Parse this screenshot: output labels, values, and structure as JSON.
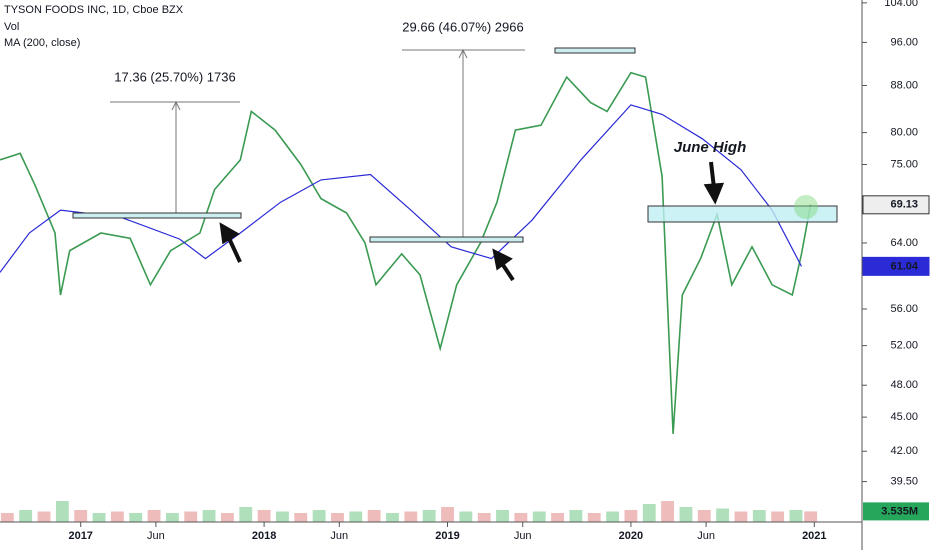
{
  "chart_data": {
    "type": "line",
    "title": "TYSON FOODS INC, 1D, Cboe BZX",
    "volume_label": "Vol",
    "ma_label": "MA (200, close)",
    "log_scale": true,
    "xlim": [
      2016.56,
      2021.26
    ],
    "xticks": [
      {
        "value": 2017,
        "label": "2017"
      },
      {
        "value": 2017.41,
        "label": "Jun"
      },
      {
        "value": 2018,
        "label": "2018"
      },
      {
        "value": 2018.41,
        "label": "Jun"
      },
      {
        "value": 2019,
        "label": "2019"
      },
      {
        "value": 2019.41,
        "label": "Jun"
      },
      {
        "value": 2020,
        "label": "2020"
      },
      {
        "value": 2020.41,
        "label": "Jun"
      },
      {
        "value": 2021,
        "label": "2021"
      }
    ],
    "ylim": [
      36.4,
      104.6
    ],
    "yticks": [
      {
        "value": 104,
        "label": "104.00"
      },
      {
        "value": 96,
        "label": "96.00"
      },
      {
        "value": 88,
        "label": "88.00"
      },
      {
        "value": 80,
        "label": "80.00"
      },
      {
        "value": 75,
        "label": "75.00"
      },
      {
        "value": 64,
        "label": "64.00"
      },
      {
        "value": 56,
        "label": "56.00"
      },
      {
        "value": 52,
        "label": "52.00"
      },
      {
        "value": 48,
        "label": "48.00"
      },
      {
        "value": 45,
        "label": "45.00"
      },
      {
        "value": 42,
        "label": "42.00"
      },
      {
        "value": 39.5,
        "label": "39.50"
      }
    ],
    "series": [
      {
        "name": "TYSON FOODS INC",
        "color": "#3b9a52",
        "x": [
          2016.56,
          2016.67,
          2016.75,
          2016.86,
          2016.89,
          2016.94,
          2017.11,
          2017.27,
          2017.38,
          2017.49,
          2017.65,
          2017.73,
          2017.87,
          2017.93,
          2018.06,
          2018.2,
          2018.31,
          2018.45,
          2018.55,
          2018.61,
          2018.75,
          2018.85,
          2018.96,
          2019.05,
          2019.18,
          2019.27,
          2019.37,
          2019.51,
          2019.65,
          2019.78,
          2019.87,
          2020.0,
          2020.08,
          2020.17,
          2020.23,
          2020.28,
          2020.38,
          2020.47,
          2020.55,
          2020.66,
          2020.77,
          2020.88,
          2020.93,
          2020.98
        ],
        "values": [
          75.7,
          76.7,
          72,
          65.3,
          57.6,
          63,
          65.3,
          64.6,
          58.8,
          63,
          65.3,
          71.3,
          75.7,
          83.5,
          80.4,
          75,
          70,
          68,
          64,
          58.8,
          62.6,
          60,
          51.7,
          58.8,
          64,
          69.5,
          80.4,
          81.2,
          89.5,
          85,
          83.5,
          90.3,
          89.5,
          73.2,
          43.5,
          57.6,
          62,
          67.8,
          58.8,
          63.5,
          58.8,
          57.6,
          62.6,
          69.13
        ]
      },
      {
        "name": "MA (200, close)",
        "color": "#2a2ad6",
        "x": [
          2016.56,
          2016.72,
          2016.89,
          2017.22,
          2017.54,
          2017.68,
          2017.87,
          2018.09,
          2018.31,
          2018.58,
          2018.8,
          2019.02,
          2019.24,
          2019.46,
          2019.73,
          2020.0,
          2020.17,
          2020.39,
          2020.6,
          2020.77,
          2020.93
        ],
        "values": [
          60.3,
          65.3,
          68.4,
          67.4,
          64.5,
          62,
          65.3,
          69.5,
          72.7,
          73.5,
          68.4,
          63.5,
          62,
          67,
          75.8,
          84.6,
          83,
          79,
          74.2,
          68.4,
          61.04
        ]
      }
    ],
    "price_label": "69.13",
    "ma_value_label": "61.04",
    "volume": {
      "color": "#e8a0a0",
      "max": 20,
      "x": [
        2016.6,
        2016.7,
        2016.8,
        2016.9,
        2017.0,
        2017.1,
        2017.2,
        2017.3,
        2017.4,
        2017.5,
        2017.6,
        2017.7,
        2017.8,
        2017.9,
        2018.0,
        2018.1,
        2018.2,
        2018.3,
        2018.4,
        2018.5,
        2018.6,
        2018.7,
        2018.8,
        2018.9,
        2019.0,
        2019.1,
        2019.2,
        2019.3,
        2019.4,
        2019.5,
        2019.6,
        2019.7,
        2019.8,
        2019.9,
        2020.0,
        2020.1,
        2020.2,
        2020.3,
        2020.4,
        2020.5,
        2020.6,
        2020.7,
        2020.8,
        2020.9,
        2020.98
      ],
      "values": [
        3,
        4,
        3.5,
        7,
        4,
        3,
        3.5,
        3,
        4,
        3,
        3.5,
        4,
        3,
        5,
        4,
        3.5,
        3,
        4,
        3,
        3.5,
        4,
        3,
        3.5,
        4,
        5,
        3.5,
        3,
        4,
        3,
        3.5,
        3,
        4,
        3,
        3.5,
        4,
        6,
        7,
        5,
        4,
        4.5,
        3.5,
        4,
        3.5,
        4,
        3.535
      ],
      "value_label": "3.535M"
    },
    "annotations": [
      "17.36 (25.70%) 1736",
      "29.66 (46.07%) 2966",
      "June High"
    ]
  }
}
